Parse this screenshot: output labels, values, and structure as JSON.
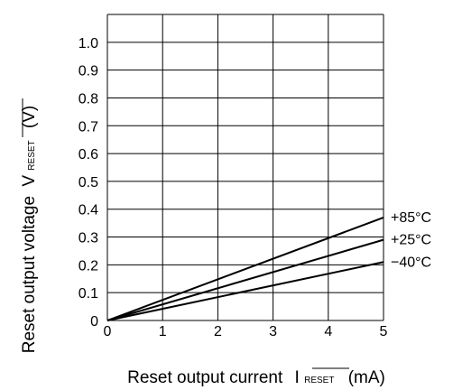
{
  "chart_data": {
    "type": "line",
    "xlabel": "Reset output current",
    "xlabel_symbol": "I",
    "xlabel_subscript": "RESET",
    "xlabel_unit": "(mA)",
    "ylabel": "Reset output voltage",
    "ylabel_symbol": "V",
    "ylabel_subscript": "RESET",
    "ylabel_unit": "(V)",
    "xlim": [
      0,
      5
    ],
    "ylim": [
      0,
      1.1
    ],
    "x_ticks": [
      "0",
      "1",
      "2",
      "3",
      "4",
      "5"
    ],
    "y_ticks": [
      "0",
      "0.1",
      "0.2",
      "0.3",
      "0.4",
      "0.5",
      "0.6",
      "0.7",
      "0.8",
      "0.9",
      "1.0"
    ],
    "grid": true,
    "legend": "none",
    "series": [
      {
        "name": "+85°C",
        "x": [
          0,
          5
        ],
        "y": [
          0,
          0.37
        ]
      },
      {
        "name": "+25°C",
        "x": [
          0,
          5
        ],
        "y": [
          0,
          0.29
        ]
      },
      {
        "name": "−40°C",
        "x": [
          0,
          5
        ],
        "y": [
          0,
          0.21
        ]
      }
    ]
  }
}
